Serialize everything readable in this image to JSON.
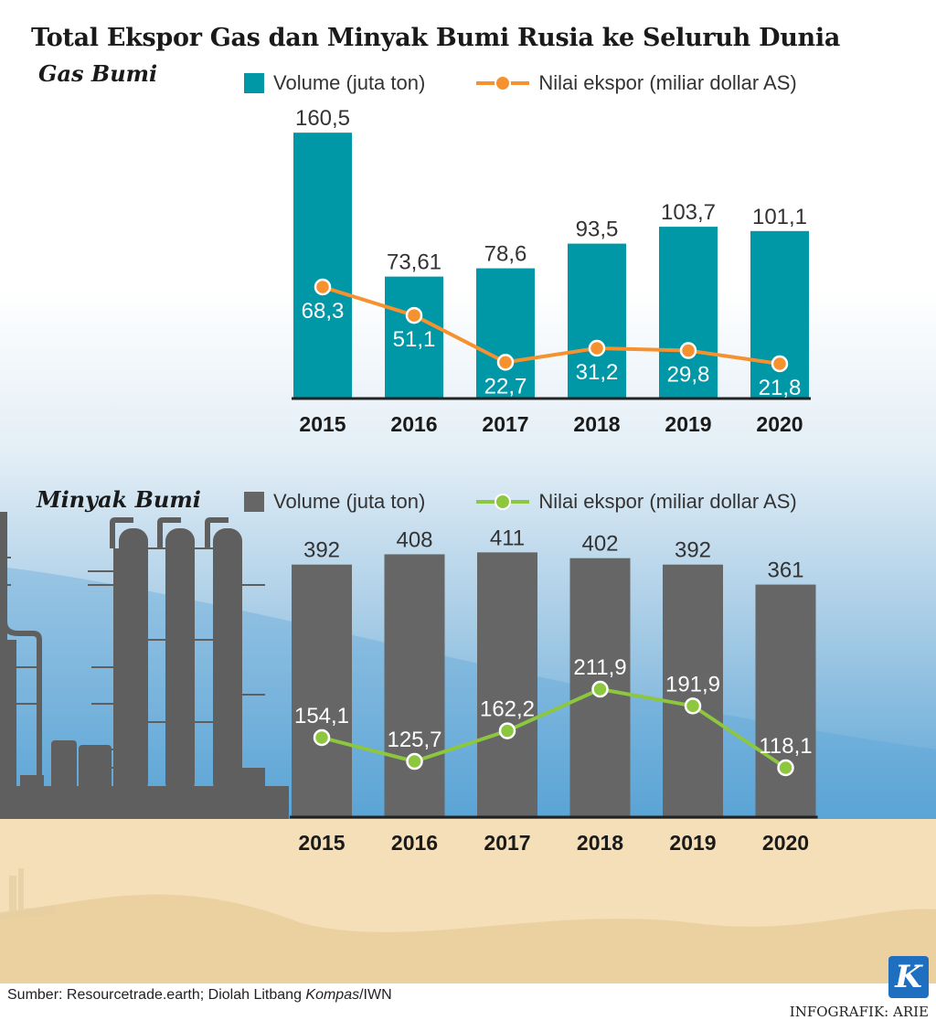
{
  "title": "Total Ekspor Gas dan Minyak Bumi Rusia ke Seluruh Dunia",
  "colors": {
    "gas_bar": "#0097a7",
    "gas_line": "#f5922f",
    "oil_bar": "#666666",
    "oil_line": "#8dc63f"
  },
  "footer": {
    "source_prefix": "Sumber: Resourcetrade.earth; Diolah Litbang ",
    "source_italic": "Kompas",
    "source_suffix": "/IWN",
    "credit": "INFOGRAFIK: ARIE",
    "logo_letter": "K"
  },
  "chart_data": [
    {
      "type": "bar",
      "section_title": "Gas Bumi",
      "categories": [
        "2015",
        "2016",
        "2017",
        "2018",
        "2019",
        "2020"
      ],
      "series": [
        {
          "name": "Volume (juta ton)",
          "type": "bar",
          "values": [
            160.5,
            73.61,
            78.6,
            93.5,
            103.7,
            101.1
          ],
          "labels": [
            "160,5",
            "73,61",
            "78,6",
            "93,5",
            "103,7",
            "101,1"
          ]
        },
        {
          "name": "Nilai ekspor (miliar dollar AS)",
          "type": "line",
          "values": [
            68.3,
            51.1,
            22.7,
            31.2,
            29.8,
            21.8
          ],
          "labels": [
            "68,3",
            "51,1",
            "22,7",
            "31,2",
            "29,8",
            "21,8"
          ]
        }
      ],
      "ylim": [
        0,
        165
      ],
      "legend_position": "top"
    },
    {
      "type": "bar",
      "section_title": "Minyak Bumi",
      "categories": [
        "2015",
        "2016",
        "2017",
        "2018",
        "2019",
        "2020"
      ],
      "series": [
        {
          "name": "Volume (juta ton)",
          "type": "bar",
          "values": [
            392,
            408,
            411,
            402,
            392,
            361
          ],
          "labels": [
            "392",
            "408",
            "411",
            "402",
            "392",
            "361"
          ]
        },
        {
          "name": "Nilai ekspor (miliar dollar AS)",
          "type": "line",
          "values": [
            154.1,
            125.7,
            162.2,
            211.9,
            191.9,
            118.1
          ],
          "labels": [
            "154,1",
            "125,7",
            "162,2",
            "211,9",
            "191,9",
            "118,1"
          ]
        }
      ],
      "ylim": [
        0,
        420
      ],
      "legend_position": "top"
    }
  ]
}
